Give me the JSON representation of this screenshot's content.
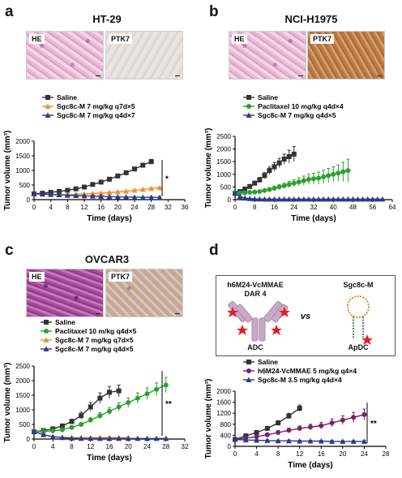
{
  "panels": [
    {
      "letter": "a",
      "title": "HT-29",
      "images": [
        "HE",
        "PTK7"
      ],
      "legend": [
        "Saline",
        "Sgc8c-M 7 mg/kg q7d×5",
        "Sgc8c-M 7 mg/kg q4d×7"
      ],
      "annotation": "*",
      "ylabel": "Tumor volume (mm³)",
      "xlabel": "Time (days)"
    },
    {
      "letter": "b",
      "title": "NCI-H1975",
      "images": [
        "HE",
        "PTK7"
      ],
      "legend": [
        "Saline",
        "Paclitaxel 10 mg/kg q4d×4",
        "Sgc8c-M 7 mg/kg q4d×5"
      ],
      "annotation": "",
      "ylabel": "Tumor volume (mm³)",
      "xlabel": "Time (days)"
    },
    {
      "letter": "c",
      "title": "OVCAR3",
      "images": [
        "HE",
        "PTK7"
      ],
      "legend": [
        "Saline",
        "Paclitaxel 10 m/kg q4d×5",
        "Sgc8c-M 7 mg/kg q7d×5",
        "Sgc8c-M 7 mg/kg q4d×5"
      ],
      "annotation": "**",
      "ylabel": "Tumor volume (mm³)",
      "xlabel": "Time (days)"
    },
    {
      "letter": "d",
      "title": "",
      "schematic": {
        "left_title": "h6M24-VcMMAE",
        "left_subtitle": "DAR 4",
        "vs": "vs",
        "right_title": "Sgc8c-M",
        "left_label": "ADC",
        "right_label": "ApDC"
      },
      "legend": [
        "Saline",
        "h6M24-VcMMAE 5 mg/kg q4×4",
        "Sgc8c-M 3.5 mg/kg q4d×4"
      ],
      "annotation": "**",
      "ylabel": "Tumor volume (mm³)",
      "xlabel": "Time (days)"
    }
  ],
  "chart_data": [
    {
      "type": "line",
      "panel": "a",
      "x": [
        0,
        2,
        4,
        6,
        8,
        10,
        12,
        14,
        16,
        18,
        20,
        22,
        24,
        26,
        28,
        30
      ],
      "series": [
        {
          "name": "Saline",
          "color": "#333333",
          "marker": "square",
          "values": [
            200,
            220,
            250,
            280,
            320,
            370,
            430,
            520,
            600,
            700,
            810,
            920,
            1050,
            1180,
            1300,
            null
          ],
          "err": [
            20,
            20,
            25,
            25,
            30,
            30,
            30,
            35,
            35,
            40,
            40,
            45,
            50,
            60,
            80,
            null
          ]
        },
        {
          "name": "Sgc8c-M 7 mg/kg q7d×5",
          "color": "#f28e2b",
          "marker": "triangle",
          "values": [
            200,
            180,
            170,
            165,
            170,
            180,
            195,
            210,
            225,
            245,
            265,
            290,
            320,
            350,
            380,
            410
          ],
          "err": [
            15,
            15,
            15,
            15,
            15,
            15,
            15,
            15,
            15,
            15,
            15,
            15,
            15,
            15,
            15,
            15
          ]
        },
        {
          "name": "Sgc8c-M 7 mg/kg q4d×7",
          "color": "#2b3a8c",
          "marker": "triangle",
          "values": [
            200,
            195,
            180,
            165,
            150,
            140,
            130,
            120,
            110,
            100,
            95,
            90,
            85,
            80,
            80,
            75
          ],
          "err": [
            15,
            15,
            15,
            15,
            15,
            15,
            15,
            15,
            15,
            15,
            15,
            15,
            15,
            15,
            15,
            15
          ]
        }
      ],
      "xlim": [
        0,
        36
      ],
      "xticks": [
        0,
        4,
        8,
        12,
        16,
        20,
        24,
        28,
        32,
        36
      ],
      "ylim": [
        0,
        2000
      ],
      "yticks": [
        0,
        500,
        1000,
        1500,
        2000
      ]
    },
    {
      "type": "line",
      "panel": "b",
      "x": [
        0,
        2,
        4,
        6,
        8,
        10,
        12,
        14,
        16,
        18,
        20,
        22,
        24,
        26,
        28,
        30,
        32,
        34,
        36,
        38,
        40,
        42,
        44,
        46,
        48,
        50,
        52,
        54,
        56,
        58,
        60
      ],
      "series": [
        {
          "name": "Saline",
          "color": "#333333",
          "marker": "square",
          "values": [
            250,
            320,
            420,
            520,
            650,
            780,
            950,
            1150,
            1300,
            1450,
            1600,
            1700,
            1800,
            null,
            null,
            null,
            null,
            null,
            null,
            null,
            null,
            null,
            null,
            null,
            null,
            null,
            null,
            null,
            null,
            null,
            null
          ],
          "err": [
            30,
            40,
            50,
            60,
            80,
            100,
            120,
            140,
            160,
            180,
            200,
            250,
            300,
            null,
            null,
            null,
            null,
            null,
            null,
            null,
            null,
            null,
            null,
            null,
            null,
            null,
            null,
            null,
            null,
            null,
            null
          ]
        },
        {
          "name": "Paclitaxel 10 mg/kg q4d×4",
          "color": "#2ca02c",
          "marker": "circle",
          "values": [
            250,
            260,
            270,
            290,
            300,
            320,
            360,
            400,
            450,
            500,
            550,
            600,
            650,
            700,
            750,
            800,
            820,
            850,
            900,
            950,
            1000,
            1050,
            1100,
            1150,
            null,
            null,
            null,
            null,
            null,
            null,
            null
          ],
          "err": [
            30,
            30,
            30,
            40,
            40,
            50,
            60,
            70,
            80,
            90,
            100,
            120,
            140,
            160,
            180,
            200,
            220,
            240,
            260,
            280,
            300,
            320,
            380,
            450,
            null,
            null,
            null,
            null,
            null,
            null,
            null
          ]
        },
        {
          "name": "Sgc8c-M 7 mg/kg q4d×5",
          "color": "#2b3a8c",
          "marker": "triangle",
          "values": [
            250,
            120,
            60,
            40,
            30,
            25,
            20,
            20,
            20,
            20,
            20,
            20,
            20,
            20,
            20,
            20,
            20,
            20,
            20,
            20,
            20,
            20,
            20,
            20,
            20,
            20,
            20,
            20,
            20,
            20,
            20
          ],
          "err": [
            30,
            20,
            15,
            10,
            10,
            10,
            10,
            10,
            10,
            10,
            10,
            10,
            10,
            10,
            10,
            10,
            10,
            10,
            10,
            10,
            10,
            10,
            10,
            10,
            10,
            10,
            10,
            10,
            10,
            10,
            10
          ]
        }
      ],
      "xlim": [
        0,
        64
      ],
      "xticks": [
        0,
        8,
        16,
        24,
        32,
        40,
        48,
        56,
        64
      ],
      "ylim": [
        0,
        2500
      ],
      "yticks": [
        0,
        500,
        1000,
        1500,
        2000,
        2500
      ]
    },
    {
      "type": "line",
      "panel": "c",
      "x": [
        0,
        2,
        4,
        6,
        8,
        10,
        12,
        14,
        16,
        18,
        20,
        22,
        24,
        26,
        28
      ],
      "series": [
        {
          "name": "Saline",
          "color": "#333333",
          "marker": "square",
          "values": [
            250,
            290,
            350,
            450,
            600,
            800,
            1100,
            1400,
            1600,
            1650,
            null,
            null,
            null,
            null,
            null
          ],
          "err": [
            30,
            30,
            40,
            50,
            80,
            120,
            150,
            180,
            200,
            200,
            null,
            null,
            null,
            null,
            null
          ]
        },
        {
          "name": "Paclitaxel 10 m/kg q4d×5",
          "color": "#2ca02c",
          "marker": "circle",
          "values": [
            250,
            260,
            280,
            320,
            400,
            500,
            650,
            800,
            950,
            1100,
            1250,
            1400,
            1550,
            1700,
            1850
          ],
          "err": [
            30,
            30,
            40,
            40,
            50,
            60,
            80,
            100,
            120,
            140,
            160,
            180,
            200,
            220,
            260
          ]
        },
        {
          "name": "Sgc8c-M 7 mg/kg q7d×5",
          "color": "#f28e2b",
          "marker": "triangle",
          "values": [
            250,
            150,
            80,
            60,
            50,
            50,
            50,
            50,
            50,
            50,
            50,
            null,
            null,
            null,
            null
          ],
          "err": [
            20,
            20,
            15,
            10,
            10,
            10,
            10,
            10,
            10,
            10,
            10,
            null,
            null,
            null,
            null
          ]
        },
        {
          "name": "Sgc8c-M 7 mg/kg q4d×5",
          "color": "#2b3a8c",
          "marker": "triangle",
          "values": [
            250,
            150,
            80,
            50,
            30,
            20,
            20,
            20,
            20,
            20,
            20,
            20,
            20,
            20,
            20
          ],
          "err": [
            20,
            20,
            15,
            10,
            10,
            10,
            10,
            10,
            10,
            10,
            10,
            10,
            10,
            10,
            10
          ]
        }
      ],
      "xlim": [
        0,
        32
      ],
      "xticks": [
        0,
        4,
        8,
        12,
        16,
        20,
        24,
        28,
        32
      ],
      "ylim": [
        0,
        2500
      ],
      "yticks": [
        0,
        500,
        1000,
        1500,
        2000,
        2500
      ]
    },
    {
      "type": "line",
      "panel": "d",
      "x": [
        0,
        2,
        4,
        6,
        8,
        10,
        12,
        14,
        16,
        18,
        20,
        22,
        24
      ],
      "series": [
        {
          "name": "Saline",
          "color": "#333333",
          "marker": "square",
          "values": [
            250,
            380,
            500,
            650,
            850,
            1100,
            1380,
            null,
            null,
            null,
            null,
            null,
            null
          ],
          "err": [
            30,
            40,
            50,
            60,
            80,
            100,
            120,
            null,
            null,
            null,
            null,
            null,
            null
          ]
        },
        {
          "name": "h6M24-VcMMAE 5 mg/kg q4×4",
          "color": "#7b1f6a",
          "marker": "circle",
          "values": [
            250,
            300,
            350,
            420,
            500,
            580,
            650,
            700,
            750,
            850,
            950,
            1050,
            1150
          ],
          "err": [
            30,
            40,
            50,
            60,
            70,
            80,
            90,
            100,
            120,
            140,
            160,
            180,
            200
          ]
        },
        {
          "name": "Sgc8c-M 3.5 mg/kg q4d×4",
          "color": "#2b3a8c",
          "marker": "triangle",
          "values": [
            250,
            230,
            220,
            210,
            200,
            200,
            190,
            190,
            190,
            180,
            180,
            180,
            180
          ],
          "err": [
            30,
            30,
            30,
            30,
            30,
            30,
            30,
            30,
            30,
            30,
            30,
            30,
            30
          ]
        }
      ],
      "xlim": [
        0,
        28
      ],
      "xticks": [
        0,
        4,
        8,
        12,
        16,
        20,
        24,
        28
      ],
      "ylim": [
        0,
        2000
      ],
      "yticks": [
        0,
        400,
        800,
        1200,
        1600,
        2000
      ]
    }
  ]
}
